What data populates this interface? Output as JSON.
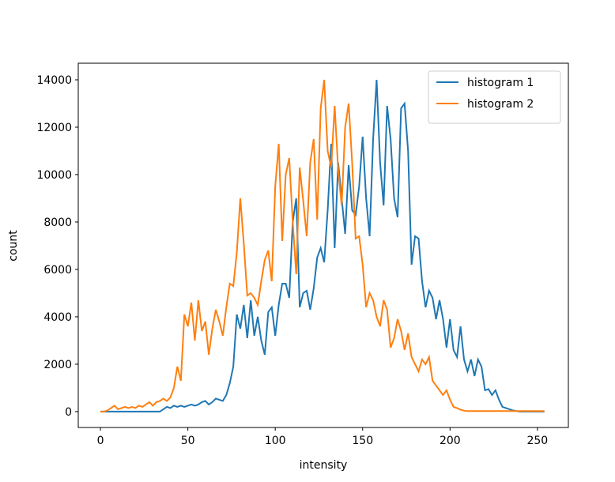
{
  "chart_data": {
    "type": "line",
    "xlabel": "intensity",
    "ylabel": "count",
    "x": [
      0,
      2,
      4,
      6,
      8,
      10,
      12,
      14,
      16,
      18,
      20,
      22,
      24,
      26,
      28,
      30,
      32,
      34,
      36,
      38,
      40,
      42,
      44,
      46,
      48,
      50,
      52,
      54,
      56,
      58,
      60,
      62,
      64,
      66,
      68,
      70,
      72,
      74,
      76,
      78,
      80,
      82,
      84,
      86,
      88,
      90,
      92,
      94,
      96,
      98,
      100,
      102,
      104,
      106,
      108,
      110,
      112,
      114,
      116,
      118,
      120,
      122,
      124,
      126,
      128,
      130,
      132,
      134,
      136,
      138,
      140,
      142,
      144,
      146,
      148,
      150,
      152,
      154,
      156,
      158,
      160,
      162,
      164,
      166,
      168,
      170,
      172,
      174,
      176,
      178,
      180,
      182,
      184,
      186,
      188,
      190,
      192,
      194,
      196,
      198,
      200,
      202,
      204,
      206,
      208,
      210,
      212,
      214,
      216,
      218,
      220,
      222,
      224,
      226,
      228,
      230,
      232,
      234,
      236,
      238,
      240,
      242,
      244,
      246,
      248,
      250,
      252,
      254
    ],
    "series": [
      {
        "name": "histogram 1",
        "color": "#1f77b4",
        "values": [
          0,
          0,
          0,
          0,
          0,
          0,
          0,
          0,
          0,
          0,
          0,
          0,
          0,
          0,
          0,
          0,
          0,
          0,
          100,
          200,
          150,
          250,
          200,
          250,
          200,
          250,
          300,
          250,
          300,
          400,
          450,
          300,
          400,
          550,
          500,
          450,
          700,
          1200,
          1900,
          4100,
          3500,
          4500,
          3100,
          4700,
          3200,
          4000,
          3000,
          2400,
          4200,
          4400,
          3200,
          4500,
          5400,
          5400,
          4800,
          8000,
          9000,
          4400,
          5000,
          5100,
          4300,
          5200,
          6500,
          6900,
          6300,
          8500,
          11300,
          6900,
          10500,
          9000,
          7500,
          10400,
          8500,
          8300,
          9500,
          11600,
          9000,
          7400,
          11500,
          14000,
          10500,
          8700,
          12900,
          11500,
          9000,
          8200,
          12800,
          13000,
          11000,
          6200,
          7400,
          7300,
          5500,
          4400,
          5100,
          4800,
          3900,
          4700,
          3900,
          2700,
          3900,
          2600,
          2300,
          3600,
          2200,
          1700,
          2200,
          1500,
          2200,
          1900,
          900,
          950,
          700,
          900,
          500,
          200,
          150,
          100,
          50,
          20,
          0,
          0,
          0,
          0,
          0,
          0,
          0,
          0
        ]
      },
      {
        "name": "histogram 2",
        "color": "#ff7f0e",
        "values": [
          0,
          0,
          50,
          150,
          250,
          100,
          150,
          200,
          150,
          200,
          150,
          250,
          200,
          300,
          400,
          250,
          400,
          450,
          550,
          450,
          600,
          1000,
          1900,
          1300,
          4100,
          3600,
          4600,
          3000,
          4700,
          3400,
          3800,
          2400,
          3500,
          4300,
          3800,
          3200,
          4400,
          5400,
          5300,
          6700,
          9000,
          7100,
          4900,
          5000,
          4800,
          4500,
          5500,
          6400,
          6800,
          5500,
          9500,
          11300,
          7200,
          10000,
          10700,
          8000,
          5800,
          10300,
          8900,
          7400,
          10500,
          11500,
          8100,
          12800,
          14000,
          11000,
          10300,
          12900,
          10200,
          8700,
          12000,
          13000,
          10500,
          7300,
          7400,
          6200,
          4400,
          5000,
          4700,
          4000,
          3600,
          4700,
          4300,
          2700,
          3100,
          3900,
          3400,
          2600,
          3300,
          2300,
          2000,
          1700,
          2200,
          2000,
          2300,
          1300,
          1100,
          900,
          700,
          900,
          500,
          200,
          150,
          80,
          40,
          20,
          20,
          20,
          20,
          20,
          20,
          20,
          20,
          20,
          20,
          20,
          20,
          20,
          20,
          20,
          20,
          20,
          20,
          20,
          20,
          20,
          20,
          20
        ]
      }
    ],
    "xlim": [
      -12.7,
      267.7
    ],
    "ylim": [
      -670,
      14700
    ],
    "xticks": [
      0,
      50,
      100,
      150,
      200,
      250
    ],
    "yticks": [
      0,
      2000,
      4000,
      6000,
      8000,
      10000,
      12000,
      14000
    ],
    "legend": "upper right"
  }
}
